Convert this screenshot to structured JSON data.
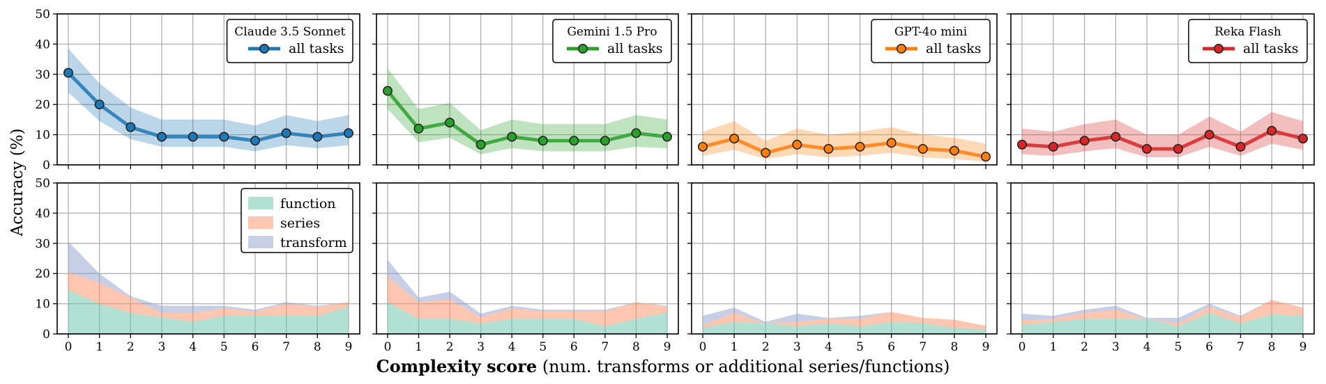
{
  "chart_data": {
    "type": "line",
    "x": [
      0,
      1,
      2,
      3,
      4,
      5,
      6,
      7,
      8,
      9
    ],
    "xlabel_bold": "Complexity score",
    "xlabel_rest": " (num. transforms or additional series/functions)",
    "ylabel": "Accuracy (%)",
    "ylim": [
      0,
      50
    ],
    "yticks": [
      0,
      10,
      20,
      30,
      40,
      50
    ],
    "grid": true,
    "legend_placement": "top-right",
    "top_row": [
      {
        "model": "Claude 3.5 Sonnet",
        "series_name": "all tasks",
        "color": "#1f77b4",
        "values": [
          30.5,
          20,
          12.5,
          9.3,
          9.3,
          9.3,
          8,
          10.5,
          9.3,
          10.5
        ],
        "lower": [
          24,
          14.5,
          8.5,
          6,
          6,
          6,
          4.5,
          6.5,
          5.5,
          6.5
        ],
        "upper": [
          38.5,
          27,
          19,
          15,
          15,
          15,
          13,
          16.5,
          14.5,
          16.5
        ]
      },
      {
        "model": "Gemini 1.5 Pro",
        "series_name": "all tasks",
        "color": "#2ca02c",
        "values": [
          24.5,
          12,
          14,
          6.7,
          9.3,
          8,
          8,
          8,
          10.5,
          9.3
        ],
        "lower": [
          18.5,
          7.5,
          9,
          3.5,
          5.5,
          4.5,
          4.5,
          4.5,
          6,
          5.5
        ],
        "upper": [
          32,
          18.5,
          20.5,
          11.5,
          15,
          13.5,
          13.5,
          13.5,
          16.5,
          15
        ]
      },
      {
        "model": "GPT-4o mini",
        "series_name": "all tasks",
        "color": "#ff7f0e",
        "values": [
          6,
          8.7,
          4,
          6.7,
          5.3,
          6,
          7.3,
          5.3,
          4.7,
          2.7
        ],
        "lower": [
          3,
          5,
          2,
          3.5,
          2.5,
          3,
          4,
          2.5,
          2,
          1
        ],
        "upper": [
          11,
          14.5,
          8,
          12,
          10,
          11,
          12.5,
          10,
          9,
          7
        ]
      },
      {
        "model": "Reka Flash",
        "series_name": "all tasks",
        "color": "#d62728",
        "values": [
          6.7,
          6,
          8,
          9.3,
          5.3,
          5.3,
          10,
          6,
          11.3,
          8.7
        ],
        "lower": [
          3.5,
          3,
          4.5,
          5.5,
          2.5,
          2.5,
          6,
          3,
          7,
          5
        ],
        "upper": [
          12,
          11,
          13.5,
          15,
          10,
          10,
          16,
          11,
          17.5,
          14.5
        ]
      }
    ],
    "bottom_row": {
      "type": "area",
      "stack_names": [
        "function",
        "series",
        "transform"
      ],
      "stack_colors": [
        "#66c2a5",
        "#fc8d62",
        "#8da0cb"
      ],
      "panels": [
        {
          "function": [
            14.5,
            10,
            7,
            5.5,
            4,
            6,
            6,
            6,
            6,
            9
          ],
          "series": [
            6,
            7,
            5,
            1.5,
            3,
            2.5,
            1.5,
            4,
            3,
            1.5
          ],
          "transform": [
            10,
            3,
            0.5,
            2.3,
            2.3,
            0.8,
            0.5,
            0.5,
            0.3,
            0
          ]
        },
        {
          "function": [
            10.5,
            5,
            5,
            3.5,
            5,
            5,
            5,
            2.5,
            5,
            7
          ],
          "series": [
            8.5,
            5.5,
            6.5,
            2,
            3.5,
            2.5,
            2.5,
            5,
            5.5,
            2
          ],
          "transform": [
            5.5,
            1.5,
            2.5,
            1.2,
            0.8,
            0.5,
            0.5,
            0.5,
            0,
            0.3
          ]
        },
        {
          "function": [
            2,
            4,
            3.5,
            2.5,
            3.5,
            2.5,
            4,
            3.5,
            2,
            1.5
          ],
          "series": [
            1,
            3,
            0,
            1.5,
            1.5,
            2.5,
            3.3,
            1.8,
            2.7,
            1.2
          ],
          "transform": [
            3,
            1.7,
            0.5,
            2.7,
            0.3,
            1,
            0,
            0,
            0,
            0
          ]
        },
        {
          "function": [
            3,
            4,
            5,
            5,
            5,
            2.5,
            7,
            3.5,
            6.5,
            6
          ],
          "series": [
            1.5,
            1,
            2,
            3,
            0,
            1,
            2,
            2,
            4.8,
            2.7
          ],
          "transform": [
            2.2,
            1,
            1,
            1.3,
            0.3,
            1.8,
            1,
            0.5,
            0,
            0
          ]
        }
      ]
    }
  }
}
